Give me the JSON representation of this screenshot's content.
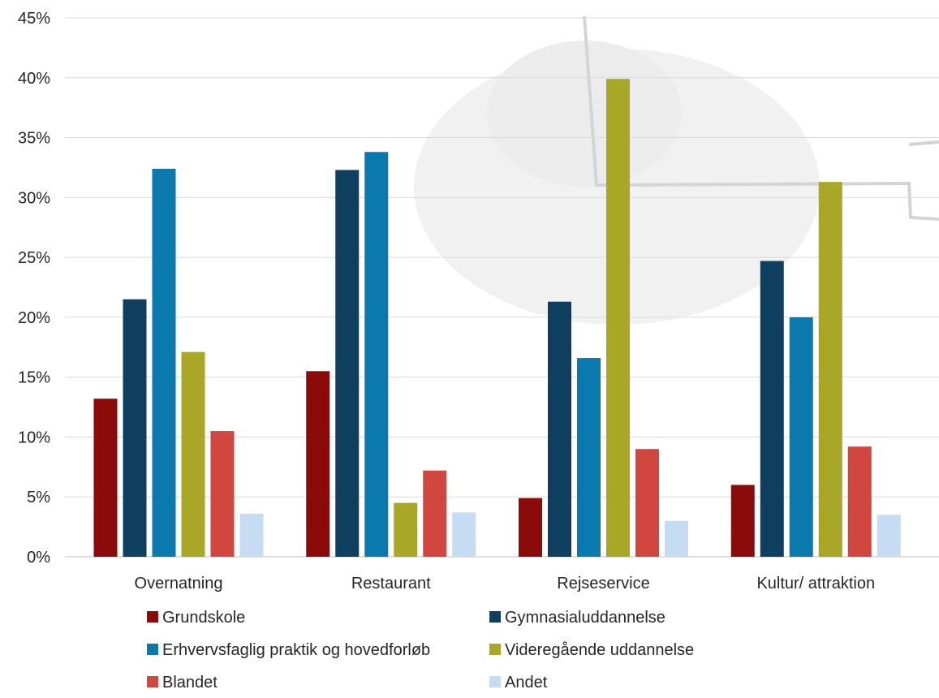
{
  "chart_data": {
    "type": "bar",
    "categories": [
      "Overnatning",
      "Restaurant",
      "Rejseservice",
      "Kultur/ attraktion"
    ],
    "series": [
      {
        "name": "Grundskole",
        "color": "#8B0A0A",
        "values": [
          13.2,
          15.5,
          4.9,
          6.0
        ]
      },
      {
        "name": "Gymnasialuddannelse",
        "color": "#0E3F5E",
        "values": [
          21.5,
          32.3,
          21.3,
          24.7
        ]
      },
      {
        "name": "Erhvervsfaglig praktik og hovedforløb",
        "color": "#0A7AAE",
        "values": [
          32.4,
          33.8,
          16.6,
          20.0
        ]
      },
      {
        "name": "Videregående uddannelse",
        "color": "#A8A826",
        "values": [
          17.1,
          4.5,
          39.9,
          31.3
        ]
      },
      {
        "name": "Blandet",
        "color": "#D1473F",
        "values": [
          10.5,
          7.2,
          9.0,
          9.2
        ]
      },
      {
        "name": "Andet",
        "color": "#C5DCF3",
        "values": [
          3.6,
          3.7,
          3.0,
          3.5
        ]
      }
    ],
    "yticks": [
      "0%",
      "5%",
      "10%",
      "15%",
      "20%",
      "25%",
      "30%",
      "35%",
      "40%",
      "45%"
    ],
    "ylim": [
      0,
      45
    ],
    "grid": true,
    "legend_position": "bottom",
    "xlabel": "",
    "ylabel": "",
    "title": ""
  }
}
